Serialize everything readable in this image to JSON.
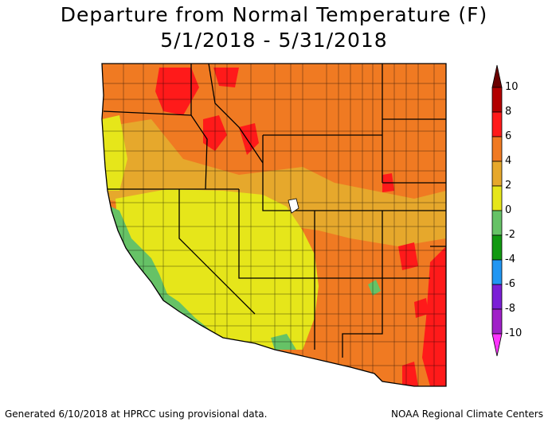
{
  "title": "Departure from Normal Temperature (F)",
  "subtitle": "5/1/2018 - 5/31/2018",
  "colorbar": {
    "labels": [
      "10",
      "8",
      "6",
      "4",
      "2",
      "0",
      "-2",
      "-4",
      "-6",
      "-8",
      "-10"
    ],
    "bins": [
      {
        "range": "8 to 10",
        "color": "#b30000"
      },
      {
        "range": "6 to 8",
        "color": "#ff1a1a"
      },
      {
        "range": "4 to 6",
        "color": "#f07a22"
      },
      {
        "range": "2 to 4",
        "color": "#e6a82c"
      },
      {
        "range": "0 to 2",
        "color": "#e6e61a"
      },
      {
        "range": "-2 to 0",
        "color": "#66c266"
      },
      {
        "range": "-4 to -2",
        "color": "#119911"
      },
      {
        "range": "-6 to -4",
        "color": "#2196f3"
      },
      {
        "range": "-8 to -6",
        "color": "#7b1fd6"
      },
      {
        "range": "-10 to -8",
        "color": "#a020c8"
      }
    ],
    "top_arrow_color": "#6b0000",
    "bottom_arrow_color": "#ff33ff"
  },
  "map_colors": {
    "ocean": "#ffffff",
    "border": "#000000"
  },
  "footer": {
    "left": "Generated 6/10/2018 at HPRCC using provisional data.",
    "right": "NOAA Regional Climate Centers"
  }
}
